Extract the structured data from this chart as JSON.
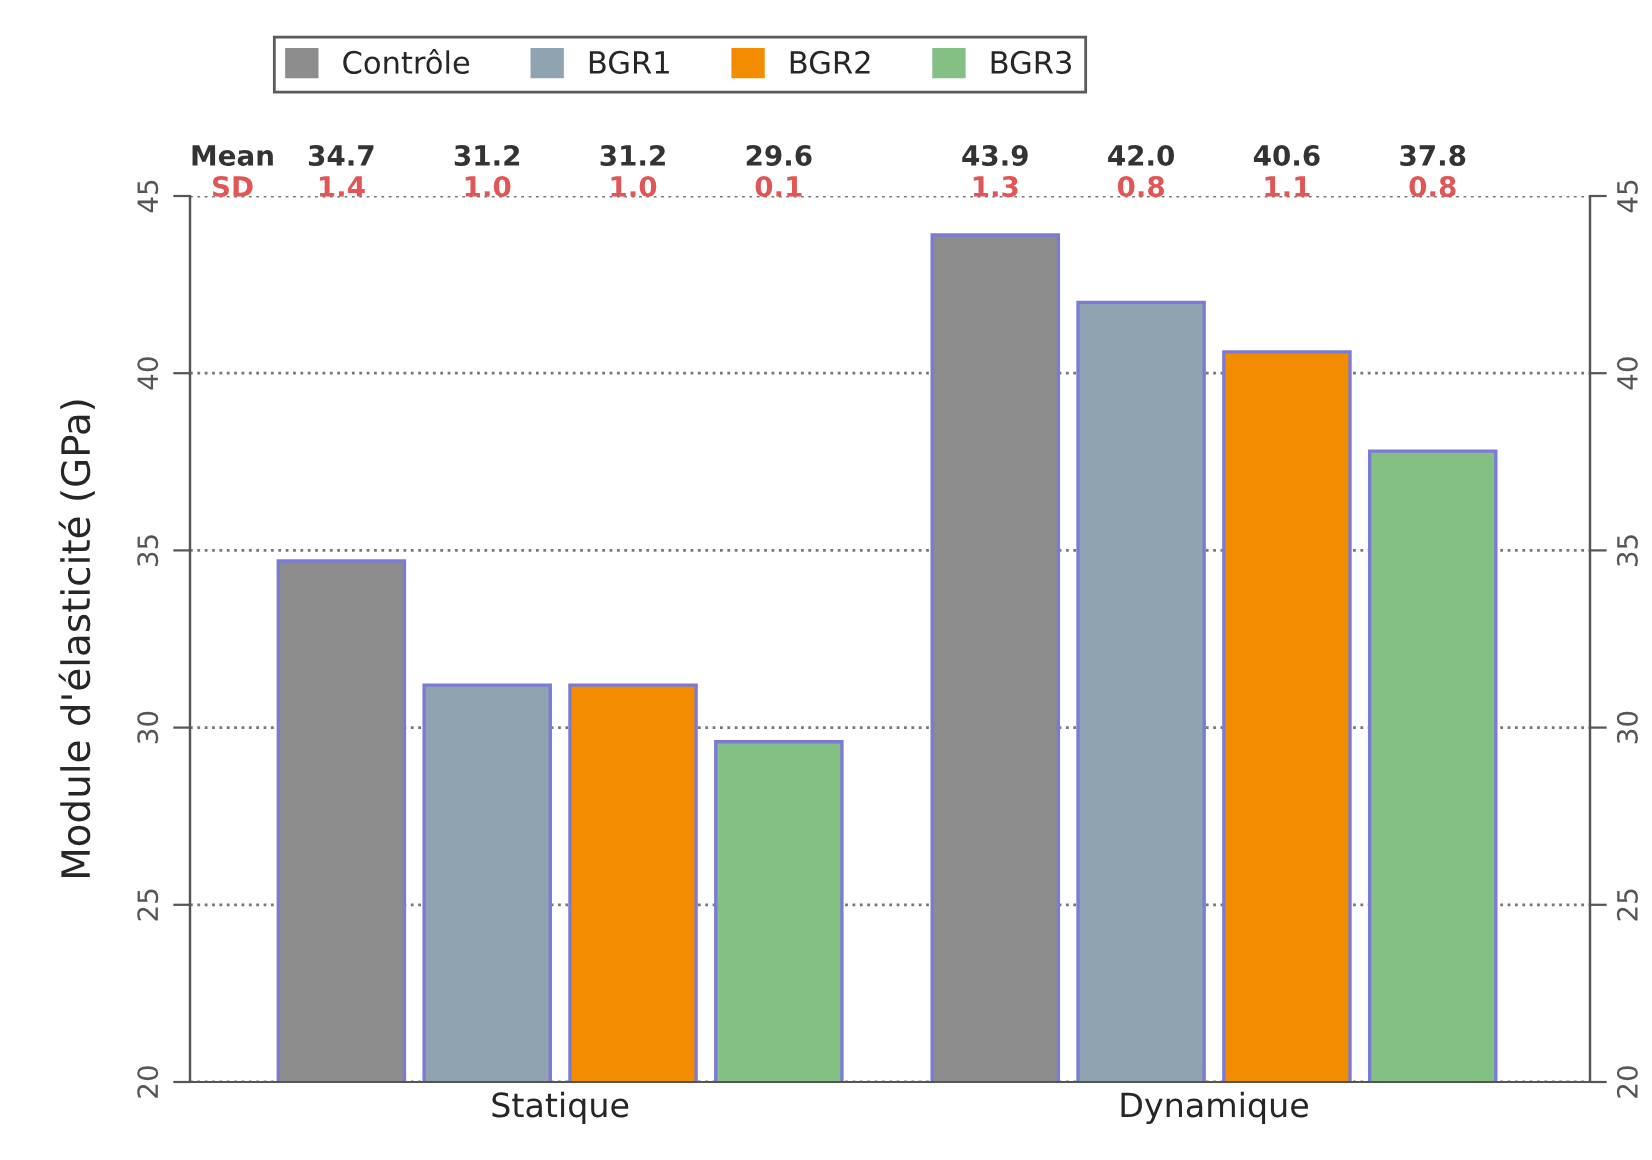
{
  "chart_data": {
    "type": "bar",
    "categories": [
      "Statique",
      "Dynamique"
    ],
    "series": [
      {
        "name": "Contrôle",
        "color": "#8c8c8c",
        "values": [
          34.7,
          43.9
        ]
      },
      {
        "name": "BGR1",
        "color": "#8fa3b0",
        "values": [
          31.2,
          42.0
        ]
      },
      {
        "name": "BGR2",
        "color": "#f28c00",
        "values": [
          31.2,
          40.6
        ]
      },
      {
        "name": "BGR3",
        "color": "#84bf84",
        "values": [
          29.6,
          37.8
        ]
      }
    ],
    "ylabel": "Module d'élasticité (GPa)",
    "ylim": [
      20,
      45
    ],
    "yticks": [
      20,
      25,
      30,
      35,
      40,
      45
    ],
    "y2lim": [
      20,
      45
    ],
    "y2ticks": [
      20,
      25,
      30,
      35,
      40,
      45
    ],
    "grid": "y",
    "legend": "top",
    "annotations": [
      "Mean",
      "SD",
      "34.7",
      "31.2",
      "31.2",
      "29.6",
      "43.9",
      "42.0",
      "40.6",
      "37.8",
      "1.4",
      "1.0",
      "1.0",
      "0.1",
      "1.3",
      "0.8",
      "1.1",
      "0.8"
    ]
  }
}
